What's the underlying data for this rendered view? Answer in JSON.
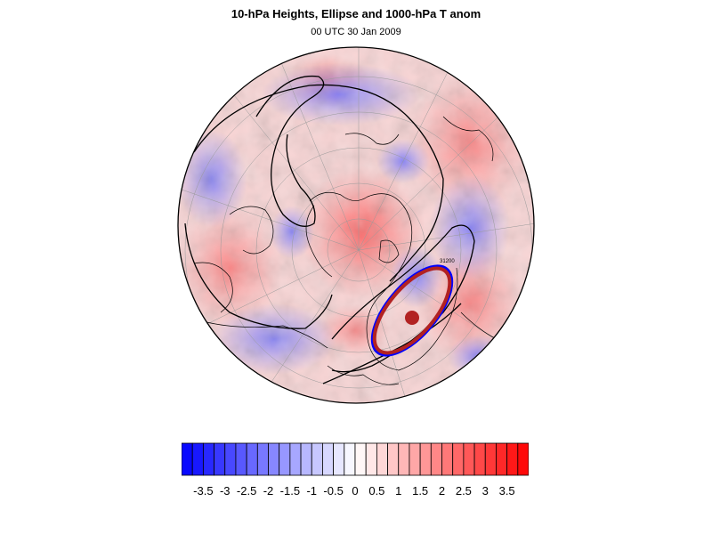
{
  "title": "10-hPa Heights, Ellipse and 1000-hPa T anom",
  "subtitle": "00 UTC 30 Jan 2009",
  "contour_label": "31200",
  "colorbar": {
    "labels": [
      "-3.5",
      "-3",
      "-2.5",
      "-2",
      "-1.5",
      "-1",
      "-0.5",
      "0",
      "0.5",
      "1",
      "1.5",
      "2",
      "2.5",
      "3",
      "3.5"
    ],
    "range": [
      -4,
      4
    ],
    "interval": 0.25,
    "colors": {
      "negative_end": "#0000ff",
      "neutral": "#ffffff",
      "positive_end": "#ff0000"
    }
  },
  "colors": {
    "ellipse_outer": "#0000ff",
    "ellipse": "#b22222",
    "center_dot": "#b22222",
    "contour": "#000000"
  }
}
